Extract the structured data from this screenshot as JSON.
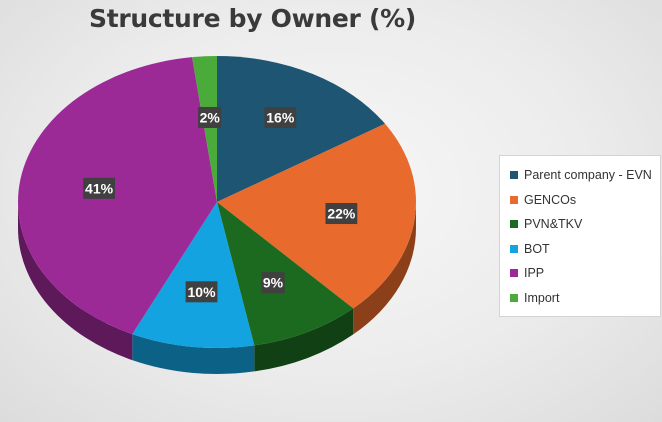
{
  "chart_data": {
    "type": "pie",
    "title": "Structure by Owner (%)",
    "categories": [
      "Parent company - EVN",
      "GENCOs",
      "PVN&TKV",
      "BOT",
      "IPP",
      "Import"
    ],
    "values": [
      16,
      22,
      9,
      10,
      41,
      2
    ],
    "data_labels": [
      "16%",
      "22%",
      "9%",
      "10%",
      "41%",
      "2%"
    ],
    "colors": [
      "#1e5573",
      "#e86a2c",
      "#1b6a1f",
      "#12a3e0",
      "#9c2a96",
      "#4aaa3a"
    ],
    "legend_position": "right",
    "style": "3d-tilted-pie"
  }
}
